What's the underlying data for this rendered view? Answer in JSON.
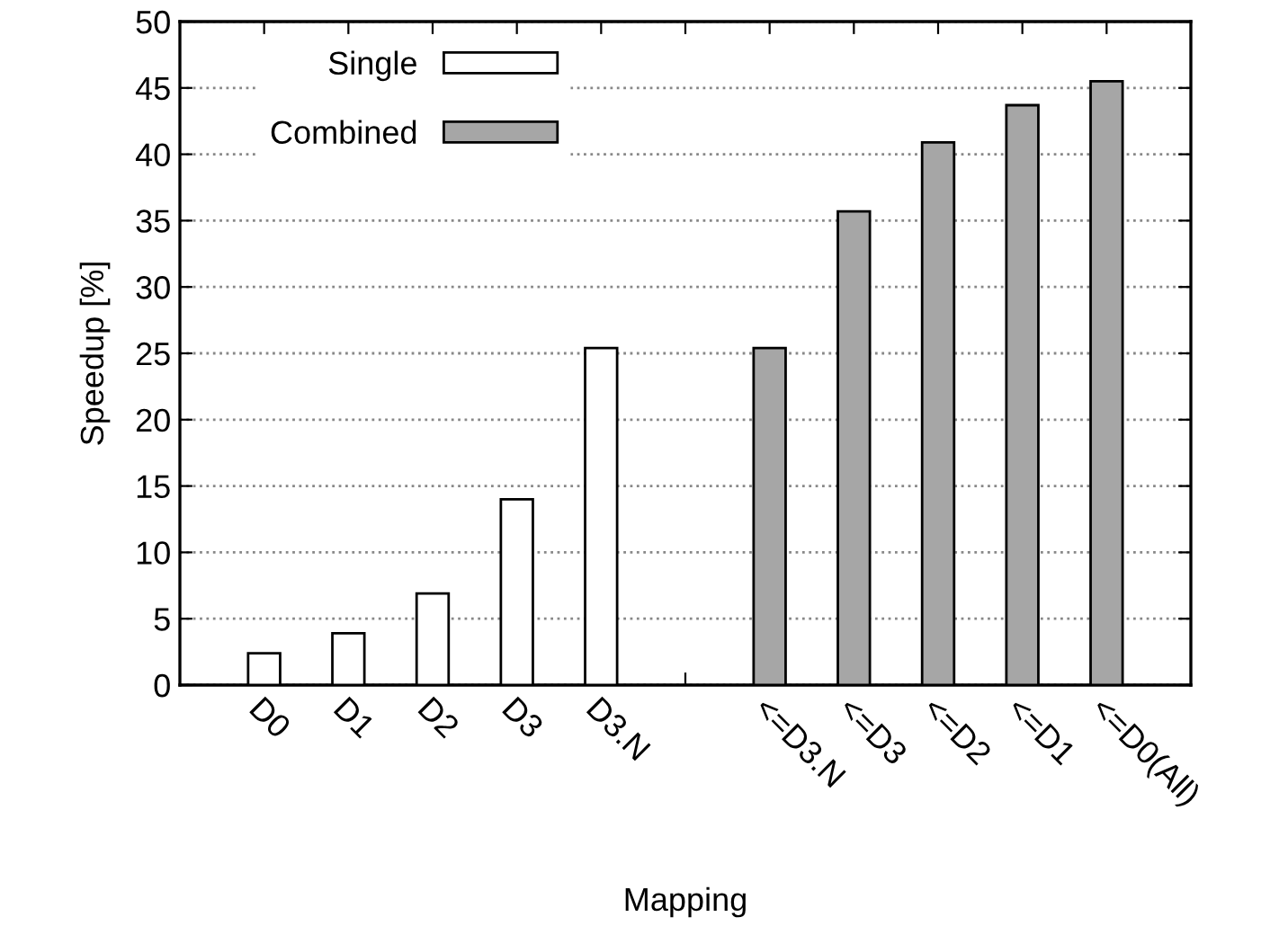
{
  "chart_data": {
    "type": "bar",
    "xlabel": "Mapping",
    "ylabel": "Speedup [%]",
    "categories": [
      "D0",
      "D1",
      "D2",
      "D3",
      "D3.N",
      null,
      "<=D3.N",
      "<=D3",
      "<=D2",
      "<=D1",
      "<=D0(All)"
    ],
    "series": [
      {
        "name": "Single",
        "color": "#ffffff",
        "values": [
          2.4,
          3.9,
          6.9,
          14.0,
          25.4,
          null,
          null,
          null,
          null,
          null,
          null
        ]
      },
      {
        "name": "Combined",
        "color": "#a6a6a6",
        "values": [
          null,
          null,
          null,
          null,
          null,
          null,
          25.4,
          35.7,
          40.9,
          43.7,
          45.5
        ]
      }
    ],
    "ylim": [
      0,
      50
    ],
    "yticks": [
      0,
      5,
      10,
      15,
      20,
      25,
      30,
      35,
      40,
      45,
      50
    ],
    "grid": "y",
    "legend": "top left"
  }
}
